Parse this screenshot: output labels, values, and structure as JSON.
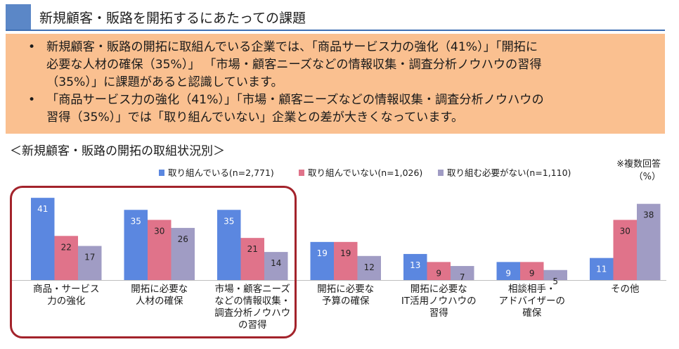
{
  "header": {
    "title": "新規顧客・販路を開拓するにあたっての課題"
  },
  "summary": {
    "bullets": [
      [
        "新規顧客・販路の開拓に取組んでいる企業では、「商品サービス力の強化（41%）」「開拓に",
        "必要な人材の確保（35%）」 「市場・顧客ニーズなどの情報収集・調査分析ノウハウの習得",
        "（35%）」に課題があると認識しています。"
      ],
      [
        "「商品サービス力の強化（41%）」「市場・顧客ニーズなどの情報収集・調査分析ノウハウの",
        "習得（35%）」では「取り組んでいない」企業との差が大きくなっています。"
      ]
    ]
  },
  "subheading": "＜新規顧客・販路の開拓の取組状況別＞",
  "notes": {
    "multiple": "※複数回答",
    "unit": "（%）"
  },
  "chart_data": {
    "type": "bar",
    "ylim": [
      0,
      45
    ],
    "grid": false,
    "legend_position": "top",
    "categories": [
      [
        "商品・サービス",
        "力の強化"
      ],
      [
        "開拓に必要な",
        "人材の確保"
      ],
      [
        "市場・顧客ニーズ",
        "などの情報収集・",
        "調査分析ノウハウ",
        "の習得"
      ],
      [
        "開拓に必要な",
        "予算の確保"
      ],
      [
        "開拓に必要な",
        "IT活用ノウハウの",
        "習得"
      ],
      [
        "相談相手・",
        "アドバイザーの",
        "確保"
      ],
      [
        "その他"
      ]
    ],
    "series": [
      {
        "name": "取り組んでいる(n=2,771)",
        "color": "#5b87e0",
        "values": [
          41,
          35,
          35,
          19,
          13,
          9,
          11
        ]
      },
      {
        "name": "取り組んでいない(n=1,026)",
        "color": "#e0738a",
        "values": [
          22,
          30,
          21,
          19,
          9,
          9,
          30
        ]
      },
      {
        "name": "取り組む必要がない(n=1,110)",
        "color": "#a09cc4",
        "values": [
          17,
          26,
          14,
          12,
          7,
          5,
          38
        ]
      }
    ],
    "label_colors": [
      "#ffffff",
      "#222222",
      "#222222"
    ],
    "highlight_color": "#a3232b"
  }
}
